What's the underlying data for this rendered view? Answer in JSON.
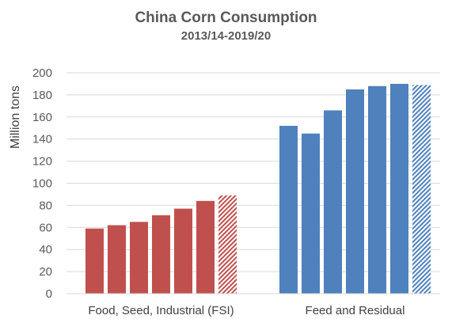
{
  "chart_data": {
    "type": "bar",
    "title": "China Corn Consumption",
    "subtitle": "2013/14-2019/20",
    "ylabel": "Million tons",
    "xlabel": "",
    "ylim": [
      0,
      200
    ],
    "yticks": [
      0,
      20,
      40,
      60,
      80,
      100,
      120,
      140,
      160,
      180,
      200
    ],
    "grid": true,
    "groups": [
      {
        "label": "Food, Seed, Industrial (FSI)",
        "color": "#c0504d",
        "values": [
          59,
          62,
          65,
          71,
          77,
          84,
          89
        ],
        "hatched_last": true
      },
      {
        "label": "Feed and Residual",
        "color": "#4f81bd",
        "values": [
          152,
          145,
          166,
          185,
          188,
          190,
          189
        ],
        "hatched_last": true
      }
    ]
  }
}
